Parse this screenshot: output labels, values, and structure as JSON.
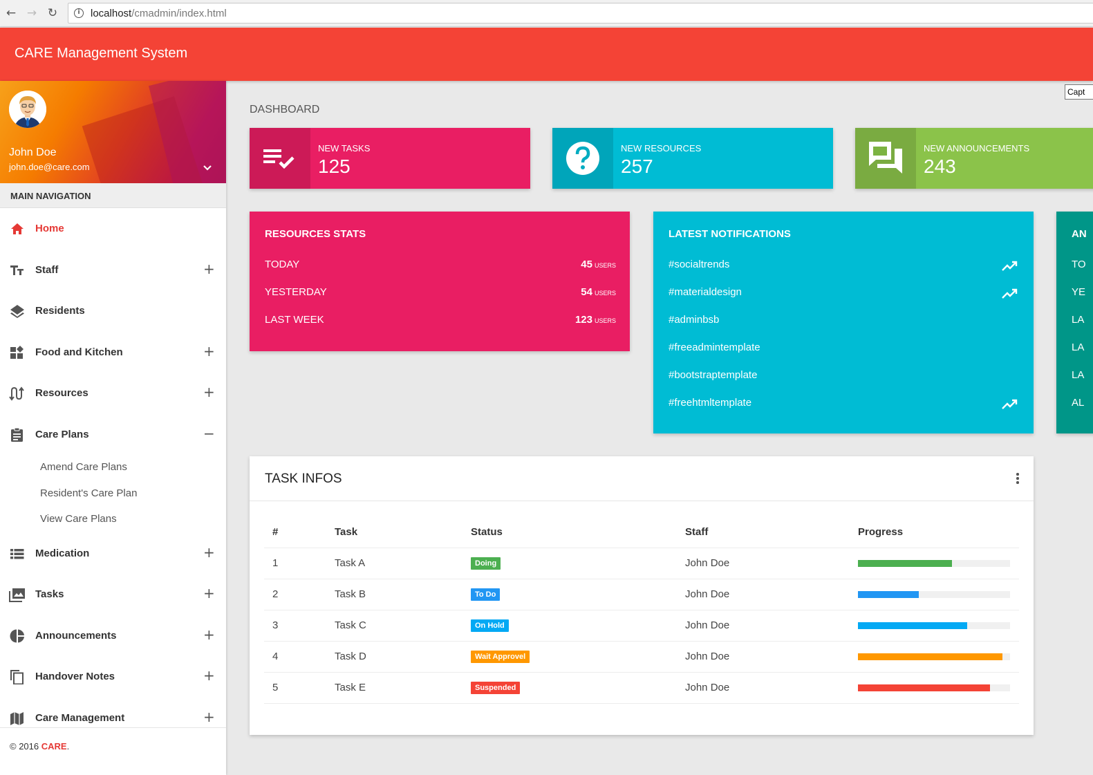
{
  "browser": {
    "host": "localhost",
    "path": "/cmadmin/index.html",
    "back_icon": "←",
    "forward_icon": "→",
    "reload_icon": "↻",
    "info_icon": "i"
  },
  "tooltip": "Capt",
  "header": {
    "brand": "CARE Management System",
    "color": "#f44336"
  },
  "user": {
    "name": "John Doe",
    "email": "john.doe@care.com"
  },
  "sidebar": {
    "section_title": "MAIN NAVIGATION",
    "items": [
      {
        "label": "Home",
        "icon": "home-icon",
        "toggle": "",
        "active": true
      },
      {
        "label": "Staff",
        "icon": "text-fields-icon",
        "toggle": "+"
      },
      {
        "label": "Residents",
        "icon": "layers-icon",
        "toggle": ""
      },
      {
        "label": "Food and Kitchen",
        "icon": "widgets-icon",
        "toggle": "+"
      },
      {
        "label": "Resources",
        "icon": "swap-calls-icon",
        "toggle": "+"
      },
      {
        "label": "Care Plans",
        "icon": "assignment-icon",
        "toggle": "−"
      },
      {
        "label": "Medication",
        "icon": "view-list-icon",
        "toggle": "+"
      },
      {
        "label": "Tasks",
        "icon": "photo-library-icon",
        "toggle": "+"
      },
      {
        "label": "Announcements",
        "icon": "pie-chart-icon",
        "toggle": "+"
      },
      {
        "label": "Handover Notes",
        "icon": "content-copy-icon",
        "toggle": "+"
      },
      {
        "label": "Care Management",
        "icon": "map-icon",
        "toggle": "+"
      }
    ],
    "care_plans_sub": [
      "Amend Care Plans",
      "Resident's Care Plan",
      "View Care Plans"
    ],
    "footer_prefix": "© 2016 ",
    "footer_brand": "CARE",
    "footer_suffix": "."
  },
  "page_title": "DASHBOARD",
  "info_boxes": [
    {
      "label": "NEW TASKS",
      "value": "125",
      "icon": "playlist-add-check-icon",
      "color": "#e91e63"
    },
    {
      "label": "NEW RESOURCES",
      "value": "257",
      "icon": "help-icon",
      "color": "#00bcd4"
    },
    {
      "label": "NEW ANNOUNCEMENTS",
      "value": "243",
      "icon": "forum-icon",
      "color": "#8bc34a"
    }
  ],
  "resources_stats": {
    "title": "RESOURCES STATS",
    "rows": [
      {
        "label": "TODAY",
        "value": "45",
        "unit": "USERS"
      },
      {
        "label": "YESTERDAY",
        "value": "54",
        "unit": "USERS"
      },
      {
        "label": "LAST WEEK",
        "value": "123",
        "unit": "USERS"
      }
    ]
  },
  "latest_notifications": {
    "title": "LATEST NOTIFICATIONS",
    "items": [
      {
        "label": "#socialtrends",
        "trending": true
      },
      {
        "label": "#materialdesign",
        "trending": true
      },
      {
        "label": "#adminbsb",
        "trending": false
      },
      {
        "label": "#freeadmintemplate",
        "trending": false
      },
      {
        "label": "#bootstraptemplate",
        "trending": false
      },
      {
        "label": "#freehtmltemplate",
        "trending": true
      }
    ]
  },
  "partial_card": {
    "title": "AN",
    "rows": [
      "TO",
      "YE",
      "LA",
      "LA",
      "LA",
      "AL"
    ]
  },
  "task_infos": {
    "title": "TASK INFOS",
    "columns": [
      "#",
      "Task",
      "Status",
      "Staff",
      "Progress"
    ],
    "rows": [
      {
        "num": "1",
        "task": "Task A",
        "status": "Doing",
        "status_color": "#4caf50",
        "staff": "John Doe",
        "progress": 0.62,
        "progress_color": "#4caf50"
      },
      {
        "num": "2",
        "task": "Task B",
        "status": "To Do",
        "status_color": "#2196f3",
        "staff": "John Doe",
        "progress": 0.4,
        "progress_color": "#2196f3"
      },
      {
        "num": "3",
        "task": "Task C",
        "status": "On Hold",
        "status_color": "#03a9f4",
        "staff": "John Doe",
        "progress": 0.72,
        "progress_color": "#03a9f4"
      },
      {
        "num": "4",
        "task": "Task D",
        "status": "Wait Approvel",
        "status_color": "#ff9800",
        "staff": "John Doe",
        "progress": 0.95,
        "progress_color": "#ff9800"
      },
      {
        "num": "5",
        "task": "Task E",
        "status": "Suspended",
        "status_color": "#f44336",
        "staff": "John Doe",
        "progress": 0.87,
        "progress_color": "#f44336"
      }
    ]
  }
}
